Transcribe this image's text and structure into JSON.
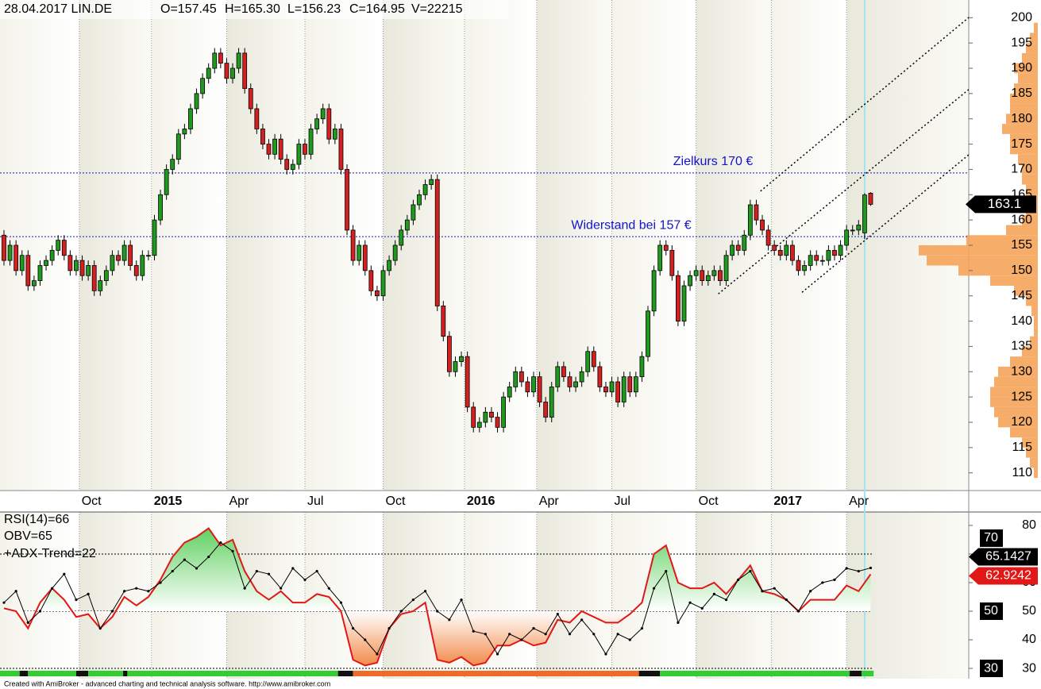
{
  "chart_data": [
    {
      "type": "candlestick",
      "header": {
        "symbol": "28.04.2017 LIN.DE",
        "ohlcv": [
          "O=157.45",
          "H=165.30",
          "L=156.23",
          "C=164.95",
          "V=22215"
        ]
      },
      "xlim": [
        -0.66,
        160.3
      ],
      "ylim": [
        106.5,
        203.5
      ],
      "xticks": [
        {
          "value": 12.5,
          "label": "Oct"
        },
        {
          "value": 24.5,
          "label": "2015"
        },
        {
          "value": 37,
          "label": "Apr"
        },
        {
          "value": 50,
          "label": "Jul"
        },
        {
          "value": 63,
          "label": "Oct"
        },
        {
          "value": 76.5,
          "label": "2016"
        },
        {
          "value": 88.5,
          "label": "Apr"
        },
        {
          "value": 101,
          "label": "Jul"
        },
        {
          "value": 115,
          "label": "Oct"
        },
        {
          "value": 127.5,
          "label": "2017"
        },
        {
          "value": 140,
          "label": "Apr"
        }
      ],
      "yticks": [
        110,
        115,
        120,
        125,
        130,
        135,
        140,
        145,
        150,
        155,
        160,
        165,
        170,
        175,
        180,
        185,
        190,
        195,
        200
      ],
      "up_color": "#1f9a1f",
      "down_color": "#d42020",
      "cursor_x": 143,
      "candles": {
        "open": [
          157,
          152,
          155,
          150,
          153,
          147,
          148,
          151,
          152,
          154,
          156,
          153,
          150,
          152,
          149,
          151,
          146,
          148,
          150,
          153,
          152,
          155,
          151,
          149,
          153,
          153,
          160,
          165,
          170,
          172,
          177,
          178,
          182,
          185,
          188,
          190,
          193,
          191,
          188,
          190,
          193,
          186,
          182,
          178,
          175,
          173,
          176,
          172,
          170,
          171,
          175,
          173,
          178,
          180,
          182,
          176,
          178,
          170,
          158,
          152,
          155,
          150,
          146,
          145,
          150,
          152,
          155,
          158,
          160,
          163,
          165,
          167,
          168,
          143,
          137,
          130,
          132,
          133,
          123,
          119,
          120,
          122,
          121,
          119,
          125,
          127,
          130,
          128,
          126,
          129,
          124,
          121,
          127,
          131,
          129,
          127,
          128,
          130,
          134,
          131,
          127,
          126,
          128,
          124,
          129,
          126,
          129,
          133,
          142,
          150,
          155,
          154,
          149,
          140,
          147,
          149,
          150,
          148,
          149,
          150,
          148,
          153,
          155,
          154,
          157,
          163,
          160,
          158,
          155,
          154,
          153,
          155,
          152,
          150,
          151,
          153,
          152,
          152,
          154,
          153,
          155,
          158,
          158,
          157.45,
          165.3
        ],
        "high": [
          158,
          156,
          156,
          154,
          154,
          149,
          152,
          153,
          155,
          157,
          157,
          154,
          153,
          153,
          152,
          152,
          149,
          151,
          154,
          154,
          156,
          156,
          152,
          154,
          154,
          161,
          166,
          171,
          173,
          178,
          179,
          183,
          186,
          189,
          191,
          194,
          194,
          192,
          191,
          194,
          194,
          187,
          183,
          179,
          176,
          177,
          177,
          173,
          172,
          176,
          176,
          179,
          181,
          183,
          183,
          179,
          179,
          171,
          159,
          156,
          156,
          151,
          147,
          151,
          153,
          156,
          159,
          161,
          164,
          166,
          168,
          169,
          169,
          144,
          138,
          133,
          134,
          134,
          124,
          121,
          123,
          123,
          122,
          126,
          128,
          131,
          131,
          129,
          130,
          130,
          125,
          128,
          132,
          132,
          130,
          129,
          131,
          135,
          135,
          132,
          128,
          129,
          129,
          130,
          130,
          130,
          134,
          143,
          151,
          156,
          156,
          155,
          150,
          148,
          150,
          151,
          151,
          150,
          151,
          151,
          154,
          156,
          156,
          158,
          164,
          164,
          161,
          159,
          156,
          155,
          156,
          156,
          153,
          152,
          154,
          154,
          153,
          155,
          155,
          156,
          159,
          159,
          160,
          165.3,
          165.5
        ],
        "low": [
          151,
          151,
          149,
          149,
          146,
          146,
          147,
          150,
          151,
          153,
          152,
          149,
          149,
          148,
          148,
          145,
          145,
          147,
          149,
          151,
          151,
          150,
          148,
          148,
          152,
          152,
          159,
          164,
          169,
          171,
          176,
          177,
          181,
          184,
          187,
          189,
          190,
          187,
          187,
          189,
          185,
          181,
          177,
          174,
          172,
          172,
          171,
          169,
          169,
          170,
          172,
          172,
          177,
          179,
          175,
          175,
          169,
          157,
          151,
          151,
          149,
          145,
          144,
          144,
          149,
          151,
          154,
          157,
          159,
          162,
          164,
          166,
          142,
          136,
          129,
          129,
          131,
          122,
          118,
          118,
          119,
          120,
          118,
          118,
          124,
          126,
          127,
          125,
          125,
          123,
          120,
          120,
          126,
          128,
          126,
          126,
          127,
          129,
          130,
          126,
          125,
          125,
          123,
          123,
          125,
          125,
          128,
          132,
          141,
          149,
          153,
          148,
          139,
          139,
          146,
          148,
          147,
          147,
          148,
          147,
          147,
          152,
          153,
          153,
          156,
          159,
          157,
          154,
          153,
          152,
          152,
          151,
          149,
          149,
          150,
          151,
          151,
          151,
          152,
          152,
          154,
          157,
          157,
          156.23,
          162.8
        ],
        "close": [
          152,
          155,
          150,
          153,
          147,
          148,
          151,
          152,
          154,
          156,
          153,
          150,
          152,
          149,
          151,
          146,
          148,
          150,
          153,
          152,
          155,
          151,
          149,
          153,
          153,
          160,
          165,
          170,
          172,
          177,
          178,
          182,
          185,
          188,
          190,
          193,
          191,
          188,
          190,
          193,
          186,
          182,
          178,
          175,
          173,
          176,
          172,
          170,
          171,
          175,
          173,
          178,
          180,
          182,
          176,
          178,
          170,
          158,
          152,
          155,
          150,
          146,
          145,
          150,
          152,
          155,
          158,
          160,
          163,
          165,
          167,
          168,
          143,
          137,
          130,
          132,
          133,
          123,
          119,
          120,
          122,
          121,
          119,
          125,
          127,
          130,
          128,
          126,
          129,
          124,
          121,
          127,
          131,
          129,
          127,
          128,
          130,
          134,
          131,
          127,
          126,
          128,
          124,
          129,
          126,
          129,
          133,
          142,
          150,
          155,
          154,
          149,
          140,
          147,
          149,
          150,
          148,
          149,
          150,
          148,
          153,
          155,
          154,
          157,
          163,
          160,
          158,
          155,
          154,
          153,
          155,
          152,
          150,
          151,
          153,
          152,
          152,
          154,
          153,
          155,
          158,
          158,
          159,
          164.95,
          163.1
        ]
      },
      "annotations": [
        {
          "value": 169.3,
          "label": "Zielkurs 170 €",
          "color": "#1414c8"
        },
        {
          "value": 156.7,
          "label": "Widerstand bei 157 €",
          "color": "#1414c8"
        }
      ],
      "trendlines": [
        {
          "x": [
            125.7,
            160.3
          ],
          "y": [
            165.7,
            200.05
          ]
        },
        {
          "x": [
            118.7,
            160.3
          ],
          "y": [
            145.4,
            185.8
          ]
        },
        {
          "x": [
            132.6,
            160.3
          ],
          "y": [
            145.7,
            172.9
          ]
        }
      ],
      "volume_profile": {
        "color": "#f6a45a",
        "xlim": [
          0,
          150
        ],
        "prices": [
          110,
          112,
          114,
          116,
          118,
          120,
          122,
          124,
          126,
          128,
          130,
          132,
          134,
          136,
          138,
          140,
          142,
          144,
          146,
          148,
          150,
          152,
          154,
          156,
          158,
          160,
          162,
          164,
          166,
          168,
          170,
          172,
          174,
          176,
          178,
          180,
          182,
          184,
          186,
          188,
          190,
          192,
          194,
          196,
          198
        ],
        "values": [
          5,
          10,
          15,
          20,
          35,
          50,
          55,
          60,
          60,
          55,
          50,
          35,
          20,
          10,
          5,
          5,
          8,
          15,
          30,
          60,
          100,
          140,
          150,
          90,
          40,
          20,
          15,
          15,
          15,
          20,
          20,
          25,
          35,
          35,
          45,
          40,
          35,
          35,
          30,
          25,
          30,
          20,
          15,
          10,
          5
        ]
      }
    },
    {
      "type": "line",
      "xlim": [
        -0.66,
        160.3
      ],
      "ylim": [
        26.4,
        84.7
      ],
      "yticks": [
        30,
        40,
        50,
        60,
        70,
        80
      ],
      "levels": [
        30,
        50,
        70
      ],
      "x": [
        0,
        2,
        4,
        6,
        8,
        10,
        12,
        14,
        16,
        18,
        20,
        22,
        24,
        26,
        28,
        30,
        32,
        34,
        36,
        38,
        40,
        42,
        44,
        46,
        48,
        50,
        52,
        54,
        56,
        58,
        60,
        62,
        64,
        66,
        68,
        70,
        72,
        74,
        76,
        78,
        80,
        82,
        84,
        86,
        88,
        90,
        92,
        94,
        96,
        98,
        100,
        102,
        104,
        106,
        108,
        110,
        112,
        114,
        116,
        118,
        120,
        122,
        124,
        126,
        128,
        130,
        132,
        134,
        136,
        138,
        140,
        142,
        144
      ],
      "series": [
        {
          "name": "RSI(14)=66",
          "color": "#000000",
          "values": [
            53,
            57,
            46,
            50,
            58,
            63,
            54,
            56,
            44,
            50,
            57,
            58,
            57,
            60,
            64,
            68,
            65,
            69,
            74,
            71,
            58,
            64,
            63,
            58,
            65,
            61,
            64,
            58,
            53,
            44,
            40,
            35,
            44,
            50,
            54,
            57,
            50,
            47,
            54,
            43,
            42,
            35,
            42,
            40,
            44,
            42,
            49,
            42,
            47,
            42,
            35,
            42,
            40,
            44,
            58,
            64,
            46,
            53,
            51,
            56,
            54,
            61,
            64,
            57,
            58,
            54,
            50,
            57,
            60,
            61,
            65,
            64,
            65.1427
          ]
        },
        {
          "name": "OBV=65",
          "color": "#e01818",
          "values": [
            51,
            50,
            44,
            53,
            58,
            54,
            48,
            49,
            44,
            48,
            55,
            52,
            55,
            61,
            69,
            74,
            76,
            79,
            73,
            75,
            64,
            57,
            54,
            57,
            53,
            53,
            56,
            55,
            50,
            33,
            31,
            32,
            44,
            49,
            50,
            53,
            33,
            32,
            34,
            31,
            32,
            38,
            38,
            40,
            38,
            39,
            47,
            46,
            50,
            48,
            46,
            46,
            49,
            53,
            70,
            73,
            60,
            58,
            58,
            60,
            56,
            61,
            66,
            57,
            56,
            54,
            50,
            54,
            54,
            54,
            59,
            57,
            62.9242
          ]
        }
      ],
      "adx_trend": {
        "name": "+ADX-Trend=22",
        "segments": [
          {
            "start": -0.66,
            "end": 2.6,
            "color": "#33cc33"
          },
          {
            "start": 2.6,
            "end": 4,
            "color": "#111111"
          },
          {
            "start": 4,
            "end": 12,
            "color": "#33cc33"
          },
          {
            "start": 12,
            "end": 14,
            "color": "#111111"
          },
          {
            "start": 14,
            "end": 19.8,
            "color": "#33cc33"
          },
          {
            "start": 19.8,
            "end": 20.5,
            "color": "#111111"
          },
          {
            "start": 20.5,
            "end": 55.5,
            "color": "#33cc33"
          },
          {
            "start": 55.5,
            "end": 58,
            "color": "#111111"
          },
          {
            "start": 58,
            "end": 105.5,
            "color": "#f06a2a"
          },
          {
            "start": 105.5,
            "end": 109,
            "color": "#111111"
          },
          {
            "start": 109,
            "end": 140.5,
            "color": "#33cc33"
          },
          {
            "start": 140.5,
            "end": 142.5,
            "color": "#111111"
          },
          {
            "start": 142.5,
            "end": 144.5,
            "color": "#33cc33"
          }
        ]
      },
      "footer": "Created with AmiBroker - advanced charting and technical analysis software. http://www.amibroker.com"
    }
  ]
}
